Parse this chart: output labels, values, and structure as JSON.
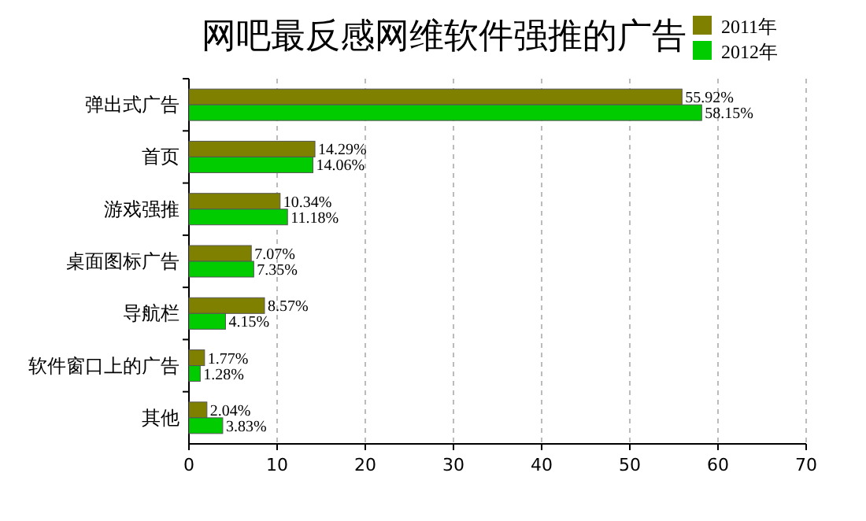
{
  "chart_data": {
    "type": "bar",
    "orientation": "horizontal",
    "title": "网吧最反感网维软件强推的广告",
    "categories": [
      "弹出式广告",
      "首页",
      "游戏强推",
      "桌面图标广告",
      "导航栏",
      "软件窗口上的广告",
      "其他"
    ],
    "series": [
      {
        "name": "2011年",
        "color": "#808000",
        "values": [
          55.92,
          14.29,
          10.34,
          7.07,
          8.57,
          1.77,
          2.04
        ],
        "value_labels": [
          "55.92%",
          "14.29%",
          "10.34%",
          "7.07%",
          "8.57%",
          "1.77%",
          "2.04%"
        ]
      },
      {
        "name": "2012年",
        "color": "#00cc00",
        "values": [
          58.15,
          14.06,
          11.18,
          7.35,
          4.15,
          1.28,
          3.83
        ],
        "value_labels": [
          "58.15%",
          "14.06%",
          "11.18%",
          "7.35%",
          "4.15%",
          "1.28%",
          "3.83%"
        ]
      }
    ],
    "xlim": [
      0,
      70
    ],
    "xticks": [
      0,
      10,
      20,
      30,
      40,
      50,
      60,
      70
    ],
    "grid": "x",
    "legend": "top right"
  }
}
